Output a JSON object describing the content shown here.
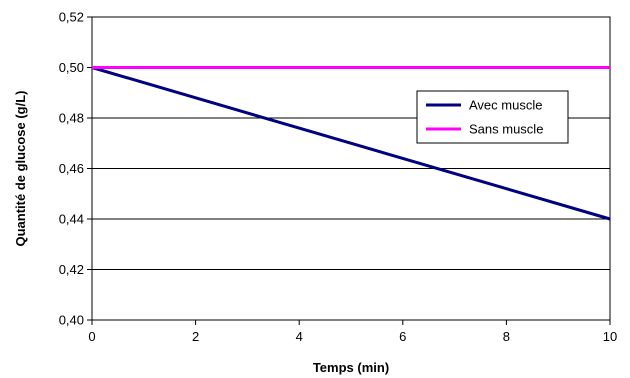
{
  "chart_data": {
    "type": "line",
    "title": "",
    "xlabel": "Temps (min)",
    "ylabel": "Quantité de glucose (g/L)",
    "xlim": [
      0,
      10
    ],
    "ylim": [
      0.4,
      0.52
    ],
    "x_ticks": [
      "0",
      "2",
      "4",
      "6",
      "8",
      "10"
    ],
    "y_ticks": [
      "0,40",
      "0,42",
      "0,44",
      "0,46",
      "0,48",
      "0,50",
      "0,52"
    ],
    "grid": "horizontal",
    "legend_position": "right",
    "series": [
      {
        "name": "Avec muscle",
        "color": "#000080",
        "x": [
          0,
          10
        ],
        "y": [
          0.5,
          0.44
        ]
      },
      {
        "name": "Sans muscle",
        "color": "#ff00ff",
        "x": [
          0,
          10
        ],
        "y": [
          0.5,
          0.5
        ]
      }
    ]
  }
}
